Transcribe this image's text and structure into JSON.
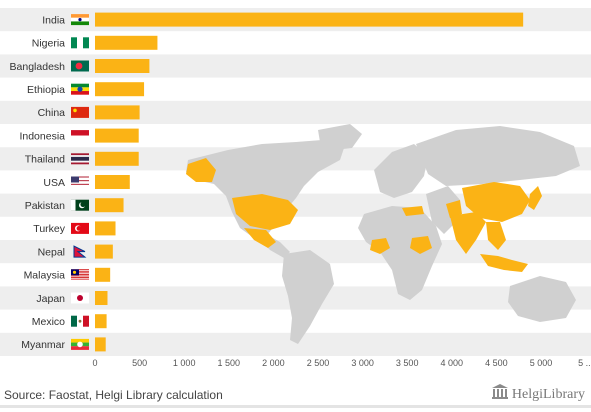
{
  "chart_data": {
    "type": "bar",
    "orientation": "horizontal",
    "categories": [
      "India",
      "Nigeria",
      "Bangladesh",
      "Ethiopia",
      "China",
      "Indonesia",
      "Thailand",
      "USA",
      "Pakistan",
      "Turkey",
      "Nepal",
      "Malaysia",
      "Japan",
      "Mexico",
      "Myanmar"
    ],
    "values": [
      4800,
      700,
      610,
      550,
      500,
      490,
      490,
      390,
      320,
      230,
      200,
      170,
      140,
      130,
      120
    ],
    "xlim": [
      0,
      5000
    ],
    "xticks": [
      "0",
      "500",
      "1 000",
      "1 500",
      "2 000",
      "2 500",
      "3 000",
      "3 500",
      "4 000",
      "4 500",
      "5 000",
      "5 ..."
    ],
    "highlighted_countries": [
      "India",
      "Nigeria",
      "Bangladesh",
      "Ethiopia",
      "China",
      "Indonesia",
      "Thailand",
      "USA",
      "Pakistan",
      "Turkey",
      "Nepal",
      "Malaysia",
      "Japan",
      "Mexico",
      "Myanmar"
    ],
    "grid": false,
    "legend": "none"
  },
  "footer": {
    "source": "Source: Faostat, Helgi Library calculation",
    "brand_name": "HelgiLibrary"
  },
  "colors": {
    "bar": "#fbb315",
    "map_land": "#d0d0d0",
    "map_highlight": "#fbb315",
    "row_stripe": "#eeeeee"
  }
}
